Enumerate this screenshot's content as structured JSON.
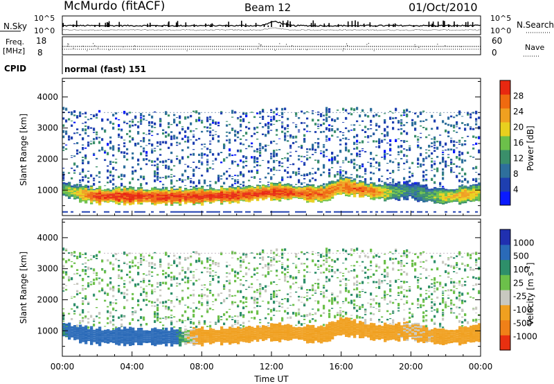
{
  "header": {
    "station": "McMurdo (fitACF)",
    "beam": "Beam 12",
    "date": "01/Oct/2010"
  },
  "top_panels": {
    "nsky_label": "N.Sky",
    "nsky_hi": "10^5",
    "nsky_lo": "10^0",
    "nsearch_label": "N.Search",
    "nsearch_hi": "10^5",
    "nsearch_lo": "10^0",
    "freq_label": "Freq.",
    "freq_unit": "[MHz]",
    "freq_hi": "18",
    "freq_lo": "8",
    "nave_label": "Nave",
    "nave_hi": "60",
    "nave_lo": "0",
    "cpid_label": "CPID",
    "cpid_value": "normal (fast) 151"
  },
  "x_axis": {
    "label": "Time UT",
    "ticks": [
      "00:00",
      "04:00",
      "08:00",
      "12:00",
      "16:00",
      "20:00",
      "00:00"
    ]
  },
  "power_panel": {
    "ylabel": "Slant Range [km]",
    "yticks": [
      "1000",
      "2000",
      "3000",
      "4000"
    ],
    "colorbar_label": "Power [dB]",
    "colorbar_ticks": [
      "4",
      "8",
      "12",
      "16",
      "20",
      "24",
      "28"
    ],
    "colors": [
      "#0a1aff",
      "#1e3fb0",
      "#2e6f9c",
      "#3a8f6a",
      "#6cc04a",
      "#e8d01e",
      "#f0a020",
      "#ef6a10",
      "#e82810"
    ]
  },
  "velocity_panel": {
    "ylabel": "Slant Range [km]",
    "yticks": [
      "1000",
      "2000",
      "3000",
      "4000"
    ],
    "colorbar_label": "Velocity [m s^-1]",
    "colorbar_ticks": [
      "1000",
      "500",
      "100",
      "25",
      "-25",
      "-100",
      "-500",
      "-1000"
    ],
    "colors": [
      "#2030b0",
      "#2a6ab8",
      "#2e8f6a",
      "#6cc04a",
      "#c8c8c0",
      "#f0a020",
      "#f08018",
      "#e83010"
    ]
  },
  "chart_data": [
    {
      "type": "heatmap",
      "title": "Power [dB]",
      "xlabel": "Time UT",
      "ylabel": "Slant Range [km]",
      "xlim": [
        0,
        24
      ],
      "ylim": [
        180,
        4600
      ],
      "colorbar_range": [
        0,
        30
      ],
      "band_center_km": [
        [
          0,
          1050
        ],
        [
          1,
          900
        ],
        [
          2,
          820
        ],
        [
          4,
          820
        ],
        [
          6,
          800
        ],
        [
          8,
          820
        ],
        [
          10,
          850
        ],
        [
          12,
          950
        ],
        [
          13,
          950
        ],
        [
          14,
          900
        ],
        [
          15,
          880
        ],
        [
          16,
          1150
        ],
        [
          17,
          1050
        ],
        [
          18,
          950
        ],
        [
          19,
          950
        ],
        [
          20,
          1000
        ],
        [
          21,
          850
        ],
        [
          22,
          800
        ],
        [
          23,
          850
        ],
        [
          24,
          950
        ]
      ],
      "peak_power_db": [
        [
          0,
          14
        ],
        [
          1,
          20
        ],
        [
          2,
          28
        ],
        [
          4,
          28
        ],
        [
          6,
          28
        ],
        [
          8,
          28
        ],
        [
          10,
          28
        ],
        [
          12,
          28
        ],
        [
          14,
          26
        ],
        [
          16,
          24
        ],
        [
          17,
          26
        ],
        [
          18,
          24
        ],
        [
          19,
          14
        ],
        [
          20,
          10
        ],
        [
          21,
          14
        ],
        [
          22,
          18
        ],
        [
          23,
          22
        ],
        [
          24,
          18
        ]
      ]
    },
    {
      "type": "heatmap",
      "title": "Velocity [m s^-1]",
      "xlabel": "Time UT",
      "ylabel": "Slant Range [km]",
      "xlim": [
        0,
        24
      ],
      "ylim": [
        180,
        4600
      ],
      "colorbar_range": [
        -1000,
        1000
      ],
      "band_velocity_ms": [
        [
          0,
          100
        ],
        [
          1,
          300
        ],
        [
          2,
          400
        ],
        [
          4,
          400
        ],
        [
          6,
          300
        ],
        [
          7,
          0
        ],
        [
          8,
          -200
        ],
        [
          10,
          -200
        ],
        [
          12,
          -300
        ],
        [
          14,
          -300
        ],
        [
          16,
          -300
        ],
        [
          18,
          -300
        ],
        [
          20,
          -100
        ],
        [
          22,
          -200
        ],
        [
          24,
          -300
        ]
      ]
    }
  ]
}
